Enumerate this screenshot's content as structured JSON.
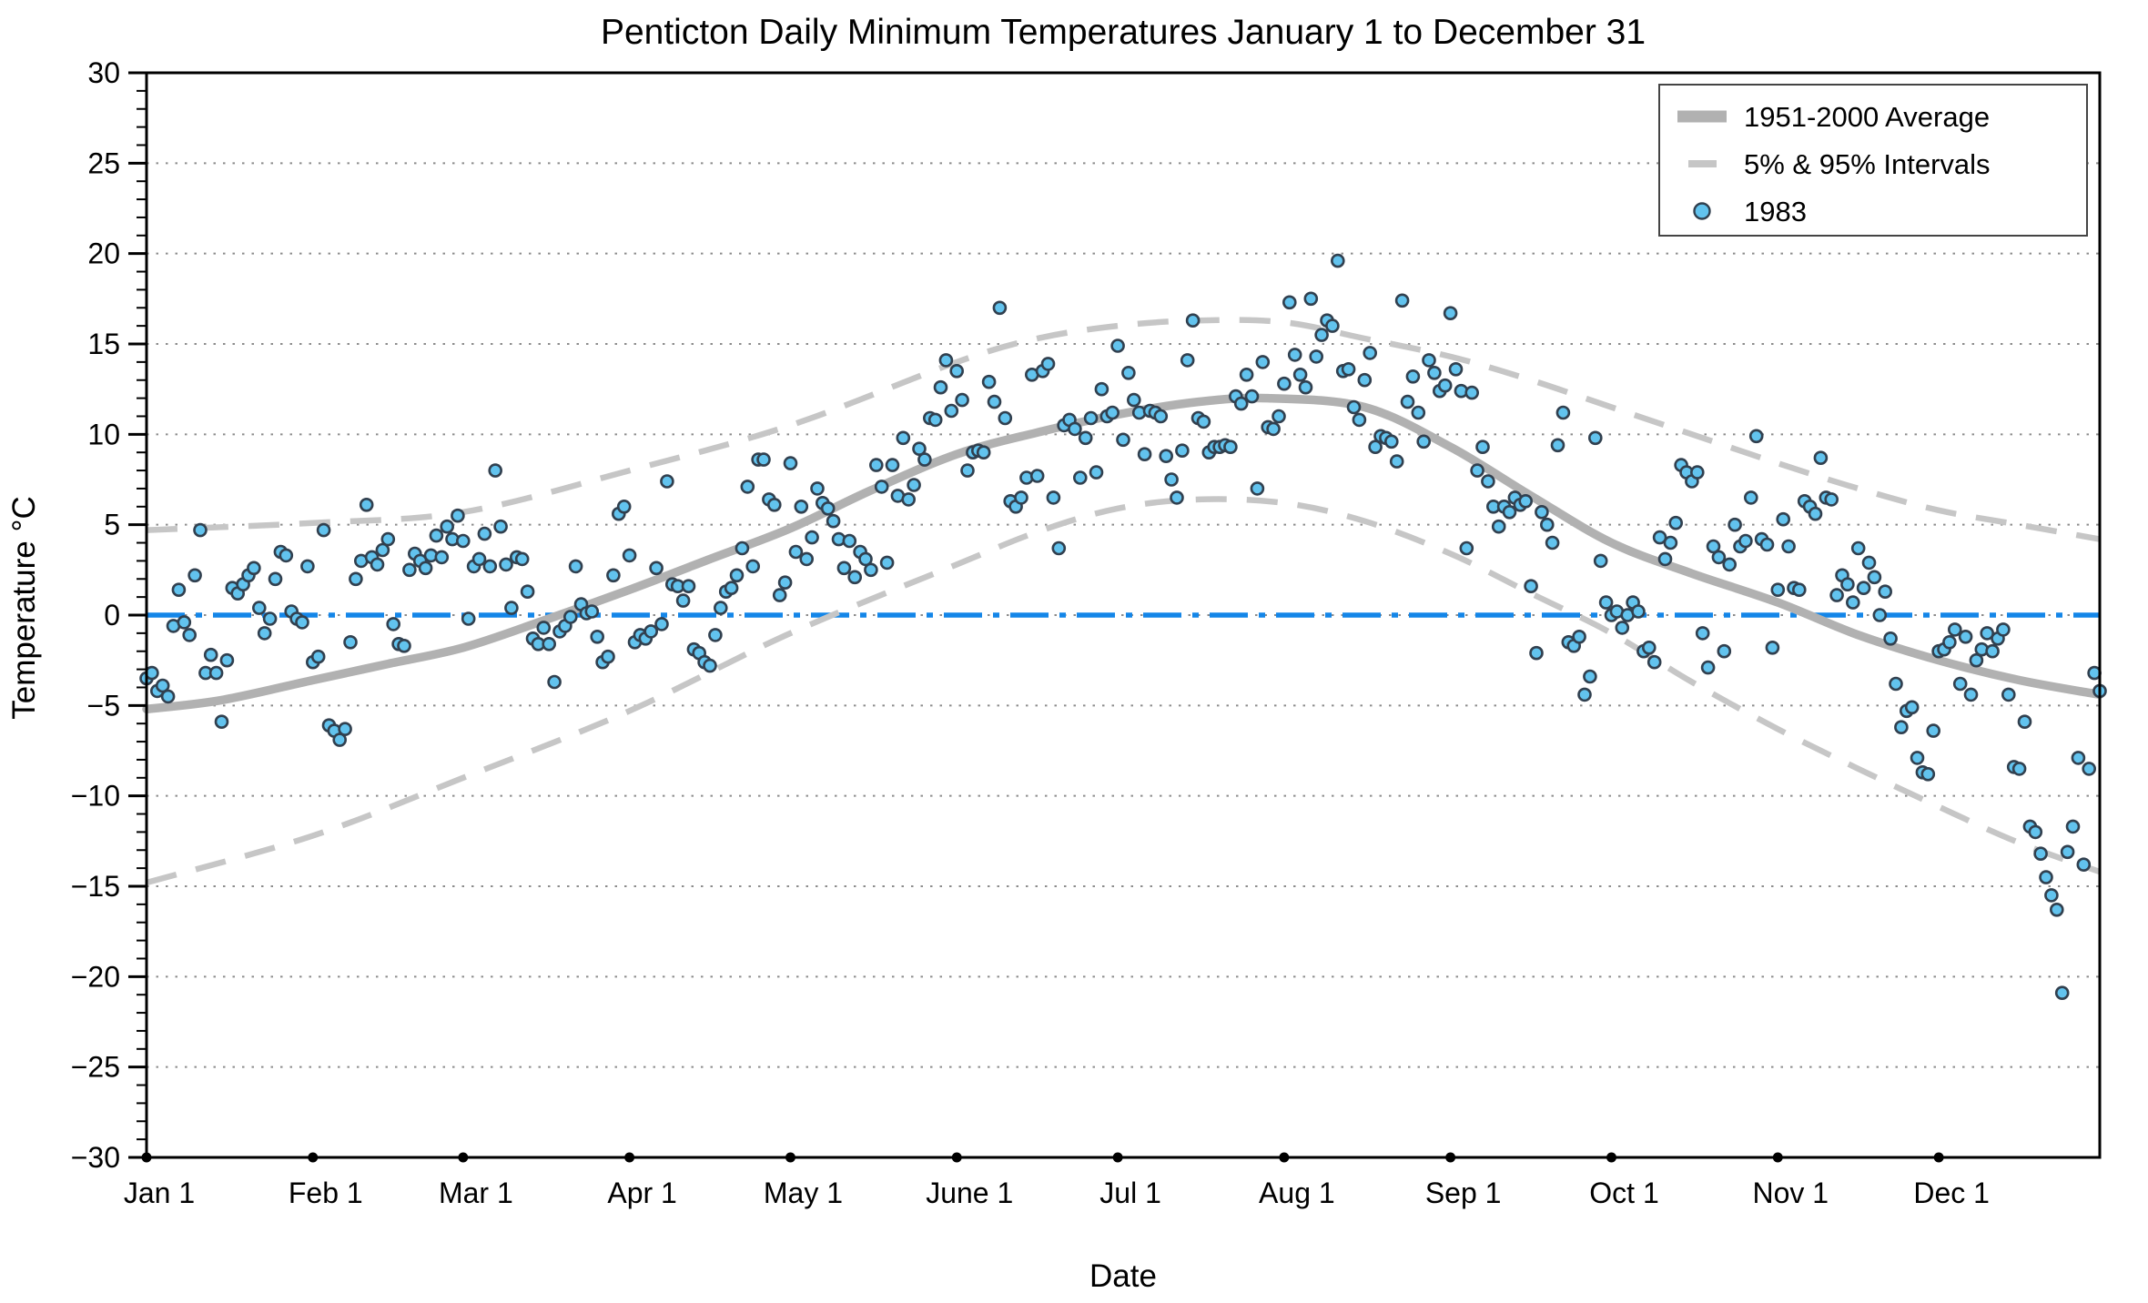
{
  "title": "Penticton Daily Minimum Temperatures January 1 to December 31",
  "axes": {
    "x_label": "Date",
    "y_label": "Temperature °C"
  },
  "legend": {
    "items": [
      {
        "label": "1951-2000 Average",
        "swatch": "thick-gray-line"
      },
      {
        "label": "5% & 95% Intervals",
        "swatch": "gray-dash"
      },
      {
        "label": "1983",
        "swatch": "blue-circle-marker"
      }
    ]
  },
  "colors": {
    "marker_fill": "#62c3ee",
    "marker_edge": "#31404f",
    "average_line": "#b1b1b1",
    "interval_dash": "#c6c6c6",
    "zero_line_blue": "#1486e8",
    "grid_dots": "#8c8c8c",
    "axis_black": "#000000"
  },
  "chart_data": {
    "type": "scatter",
    "title": "Penticton Daily Minimum Temperatures January 1 to December 31",
    "xlabel": "Date",
    "ylabel": "Temperature °C",
    "ylim": [
      -30,
      30
    ],
    "grid": "dotted horizontal every 5 degrees",
    "legend_position": "upper right",
    "y_ticks": [
      30,
      25,
      20,
      15,
      10,
      5,
      0,
      -5,
      -10,
      -15,
      -20,
      -25,
      -30
    ],
    "x_tick_labels": [
      "Jan 1",
      "Feb 1",
      "Mar 1",
      "Apr 1",
      "May 1",
      "June 1",
      "Jul 1",
      "Aug 1",
      "Sep 1",
      "Oct 1",
      "Nov 1",
      "Dec 1"
    ],
    "x_tick_days": [
      1,
      32,
      60,
      91,
      121,
      152,
      182,
      213,
      244,
      274,
      305,
      335
    ],
    "zero_reference_line": 0,
    "average_1951_2000": [
      [
        1,
        -5.2
      ],
      [
        15,
        -4.7
      ],
      [
        32,
        -3.6
      ],
      [
        46,
        -2.7
      ],
      [
        60,
        -1.8
      ],
      [
        75,
        -0.3
      ],
      [
        91,
        1.4
      ],
      [
        106,
        3.1
      ],
      [
        121,
        4.8
      ],
      [
        136,
        6.9
      ],
      [
        152,
        8.9
      ],
      [
        167,
        10.1
      ],
      [
        182,
        11.1
      ],
      [
        197,
        11.8
      ],
      [
        210,
        12.0
      ],
      [
        228,
        11.5
      ],
      [
        244,
        9.3
      ],
      [
        259,
        6.6
      ],
      [
        274,
        4.0
      ],
      [
        289,
        2.3
      ],
      [
        305,
        0.7
      ],
      [
        320,
        -1.1
      ],
      [
        335,
        -2.5
      ],
      [
        350,
        -3.6
      ],
      [
        365,
        -4.4
      ]
    ],
    "upper_95_interval": [
      [
        1,
        4.7
      ],
      [
        32,
        5.1
      ],
      [
        60,
        5.7
      ],
      [
        91,
        8.0
      ],
      [
        121,
        10.5
      ],
      [
        152,
        14.0
      ],
      [
        167,
        15.3
      ],
      [
        182,
        16.0
      ],
      [
        197,
        16.3
      ],
      [
        213,
        16.2
      ],
      [
        228,
        15.3
      ],
      [
        244,
        14.3
      ],
      [
        259,
        13.0
      ],
      [
        274,
        11.5
      ],
      [
        289,
        10.0
      ],
      [
        305,
        8.4
      ],
      [
        320,
        7.0
      ],
      [
        335,
        5.8
      ],
      [
        350,
        5.0
      ],
      [
        365,
        4.2
      ]
    ],
    "lower_5_interval": [
      [
        1,
        -14.8
      ],
      [
        32,
        -12.2
      ],
      [
        60,
        -9.0
      ],
      [
        91,
        -5.3
      ],
      [
        121,
        -1.0
      ],
      [
        152,
        2.8
      ],
      [
        167,
        4.6
      ],
      [
        182,
        5.9
      ],
      [
        197,
        6.4
      ],
      [
        213,
        6.2
      ],
      [
        228,
        5.2
      ],
      [
        244,
        3.4
      ],
      [
        259,
        1.2
      ],
      [
        274,
        -1.0
      ],
      [
        289,
        -3.7
      ],
      [
        305,
        -6.3
      ],
      [
        320,
        -8.5
      ],
      [
        335,
        -10.6
      ],
      [
        350,
        -12.6
      ],
      [
        365,
        -14.2
      ]
    ],
    "daily_min_1983_by_month": [
      [
        -3.5,
        -3.2,
        -4.2,
        -3.9,
        -4.5,
        -0.6,
        1.4,
        -0.4,
        -1.1,
        2.2,
        4.7,
        -3.2,
        -2.2,
        -3.2,
        -5.9,
        -2.5,
        1.5,
        1.2,
        1.7,
        2.2,
        2.6,
        0.4,
        -1.0,
        -0.2,
        2.0,
        3.5,
        3.3,
        0.2,
        -0.2,
        -0.4,
        2.7
      ],
      [
        -2.6,
        -2.3,
        4.7,
        -6.1,
        -6.4,
        -6.9,
        -6.3,
        -1.5,
        2.0,
        3.0,
        6.1,
        3.2,
        2.8,
        3.6,
        4.2,
        -0.5,
        -1.6,
        -1.7,
        2.5,
        3.4,
        3.0,
        2.6,
        3.3,
        4.4,
        3.2,
        4.9,
        4.2,
        5.5
      ],
      [
        4.1,
        -0.2,
        2.7,
        3.1,
        4.5,
        2.7,
        8.0,
        4.9,
        2.8,
        0.4,
        3.2,
        3.1,
        1.3,
        -1.3,
        -1.6,
        -0.7,
        -1.6,
        -3.7,
        -0.9,
        -0.6,
        -0.1,
        2.7,
        0.6,
        0.1,
        0.2,
        -1.2,
        -2.6,
        -2.3,
        2.2,
        5.6,
        6.0
      ],
      [
        3.3,
        -1.5,
        -1.1,
        -1.3,
        -0.9,
        2.6,
        -0.5,
        7.4,
        1.7,
        1.6,
        0.8,
        1.6,
        -1.9,
        -2.1,
        -2.6,
        -2.8,
        -1.1,
        0.4,
        1.3,
        1.5,
        2.2,
        3.7,
        7.1,
        2.7,
        8.6,
        8.6,
        6.4,
        6.1,
        1.1,
        1.8
      ],
      [
        8.4,
        3.5,
        6.0,
        3.1,
        4.3,
        7.0,
        6.2,
        5.9,
        5.2,
        4.2,
        2.6,
        4.1,
        2.1,
        3.5,
        3.1,
        2.5,
        8.3,
        7.1,
        2.9,
        8.3,
        6.6,
        9.8,
        6.4,
        7.2,
        9.2,
        8.6,
        10.9,
        10.8,
        12.6,
        14.1,
        11.3
      ],
      [
        13.5,
        11.9,
        8.0,
        9.0,
        9.1,
        9.0,
        12.9,
        11.8,
        17.0,
        10.9,
        6.3,
        6.0,
        6.5,
        7.6,
        13.3,
        7.7,
        13.5,
        13.9,
        6.5,
        3.7,
        10.5,
        10.8,
        10.3,
        7.6,
        9.8,
        10.9,
        7.9,
        12.5,
        11.0,
        11.2
      ],
      [
        14.9,
        9.7,
        13.4,
        11.9,
        11.2,
        8.9,
        11.3,
        11.2,
        11.0,
        8.8,
        7.5,
        6.5,
        9.1,
        14.1,
        16.3,
        10.9,
        10.7,
        9.0,
        9.3,
        9.3,
        9.4,
        9.3,
        12.1,
        11.7,
        13.3,
        12.1,
        7.0,
        14.0,
        10.4,
        10.3,
        11.0
      ],
      [
        12.8,
        17.3,
        14.4,
        13.3,
        12.6,
        17.5,
        14.3,
        15.5,
        16.3,
        16.0,
        19.6,
        13.5,
        13.6,
        11.5,
        10.8,
        13.0,
        14.5,
        9.3,
        9.9,
        9.8,
        9.6,
        8.5,
        17.4,
        11.8,
        13.2,
        11.2,
        9.6,
        14.1,
        13.4,
        12.4,
        12.7
      ],
      [
        16.7,
        13.6,
        12.4,
        3.7,
        12.3,
        8.0,
        9.3,
        7.4,
        6.0,
        4.9,
        6.0,
        5.7,
        6.5,
        6.1,
        6.3,
        1.6,
        -2.1,
        5.7,
        5.0,
        4.0,
        9.4,
        11.2,
        -1.5,
        -1.7,
        -1.2,
        -4.4,
        -3.4,
        9.8,
        3.0,
        0.7
      ],
      [
        0.0,
        0.2,
        -0.7,
        0.0,
        0.7,
        0.2,
        -2.0,
        -1.8,
        -2.6,
        4.3,
        3.1,
        4.0,
        5.1,
        8.3,
        7.9,
        7.4,
        7.9,
        -1.0,
        -2.9,
        3.8,
        3.2,
        -2.0,
        2.8,
        5.0,
        3.8,
        4.1,
        6.5,
        9.9,
        4.2,
        3.9,
        -1.8
      ],
      [
        1.4,
        5.3,
        3.8,
        1.5,
        1.4,
        6.3,
        6.0,
        5.6,
        8.7,
        6.5,
        6.4,
        1.1,
        2.2,
        1.7,
        0.7,
        3.7,
        1.5,
        2.9,
        2.1,
        0.0,
        1.3,
        -1.3,
        -3.8,
        -6.2,
        -5.3,
        -5.1,
        -7.9,
        -8.7,
        -8.8,
        -6.4
      ],
      [
        -2.0,
        -1.9,
        -1.5,
        -0.8,
        -3.8,
        -1.2,
        -4.4,
        -2.5,
        -1.9,
        -1.0,
        -2.0,
        -1.3,
        -0.8,
        -4.4,
        -8.4,
        -8.5,
        -5.9,
        -11.7,
        -12.0,
        -13.2,
        -14.5,
        -15.5,
        -16.3,
        -20.9,
        -13.1,
        -11.7,
        -7.9,
        -13.8,
        -8.5,
        -3.2,
        -4.2
      ]
    ]
  }
}
